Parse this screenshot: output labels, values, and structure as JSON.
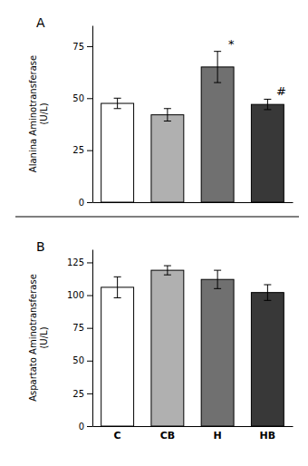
{
  "chart_data": [
    {
      "type": "bar",
      "title": "A",
      "categories": [
        null,
        null,
        null,
        null
      ],
      "values": [
        47.5,
        42.0,
        65.0,
        47.0
      ],
      "errors": [
        2.5,
        3.0,
        7.5,
        2.5
      ],
      "colors": [
        "#ffffff",
        "#b0b0b0",
        "#707070",
        "#383838"
      ],
      "annotations": [
        null,
        null,
        "*",
        "#"
      ],
      "ylabel": "Alanina Aminotransferase\n(U/L)",
      "ylim": [
        0,
        85
      ],
      "yticks": [
        0,
        25,
        50,
        75
      ]
    },
    {
      "type": "bar",
      "title": "B",
      "categories": [
        "C",
        "CB",
        "H",
        "HB"
      ],
      "values": [
        106.0,
        119.0,
        112.0,
        102.0
      ],
      "errors": [
        8.0,
        3.5,
        7.0,
        6.0
      ],
      "colors": [
        "#ffffff",
        "#b0b0b0",
        "#707070",
        "#383838"
      ],
      "ylabel": "Aspartato Aminotransferase\n(U/L)",
      "ylim": [
        0,
        135
      ],
      "yticks": [
        0,
        25,
        50,
        75,
        100,
        125
      ]
    }
  ]
}
